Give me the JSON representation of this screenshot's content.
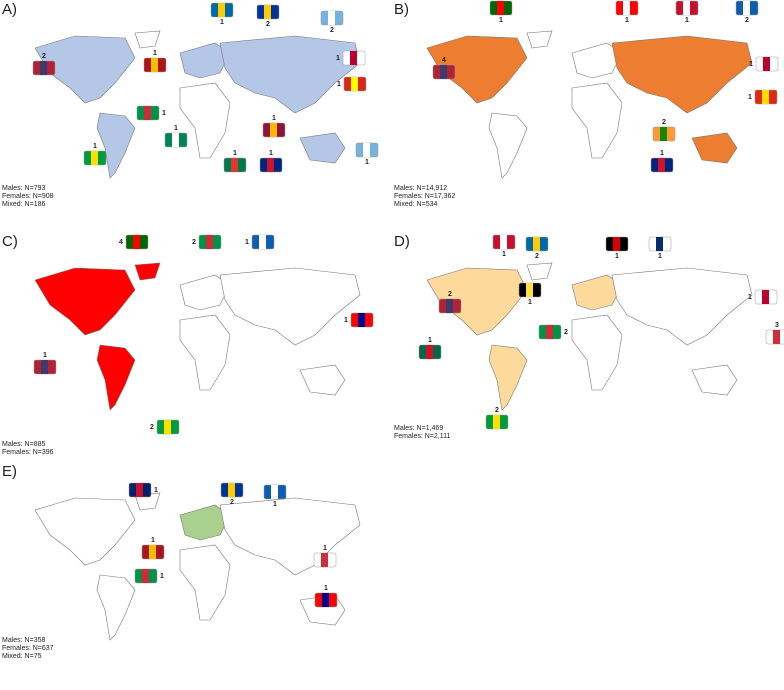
{
  "panels": [
    {
      "label": "A)",
      "flags": [
        {
          "count": 1
        },
        {
          "count": 2
        },
        {
          "count": 2
        },
        {
          "count": 2
        },
        {
          "count": 1
        },
        {
          "count": 1
        },
        {
          "count": 1
        },
        {
          "count": 1
        },
        {
          "count": 1
        },
        {
          "count": 1
        },
        {
          "count": 1
        },
        {
          "count": 1
        },
        {
          "count": 1
        },
        {
          "count": 1
        }
      ],
      "stats": [
        "Males: N=793",
        "Females: N=908",
        "Mixed: N=186"
      ]
    },
    {
      "label": "B)",
      "flags": [
        {
          "count": 1
        },
        {
          "count": 1
        },
        {
          "count": 1
        },
        {
          "count": 2
        },
        {
          "count": 4
        },
        {
          "count": 1
        },
        {
          "count": 1
        },
        {
          "count": 2
        },
        {
          "count": 1
        }
      ],
      "stats": [
        "Males:  N=14,912",
        "Females: N=17,362",
        "Mixed: N=534"
      ]
    },
    {
      "label": "C)",
      "flags": [
        {
          "count": 4
        },
        {
          "count": 2
        },
        {
          "count": 1
        },
        {
          "count": 1
        },
        {
          "count": 1
        },
        {
          "count": 2
        }
      ],
      "stats": [
        "Males: N=885",
        "Females: N=396"
      ]
    },
    {
      "label": "D)",
      "flags": [
        {
          "count": 1
        },
        {
          "count": 2
        },
        {
          "count": 1
        },
        {
          "count": 1
        },
        {
          "count": 2
        },
        {
          "count": 1
        },
        {
          "count": 1
        },
        {
          "count": 2
        },
        {
          "count": 1
        },
        {
          "count": 3
        },
        {
          "count": 2
        }
      ],
      "stats": [
        "Males: N=1,469",
        "Females: N=2,111"
      ]
    },
    {
      "label": "E)",
      "flags": [
        {
          "count": 1
        },
        {
          "count": 2
        },
        {
          "count": 1
        },
        {
          "count": 1
        },
        {
          "count": 1
        },
        {
          "count": 1
        },
        {
          "count": 1
        }
      ],
      "stats": [
        "Males: N=358",
        "Females: N=637",
        "Mixed: N=75"
      ]
    }
  ]
}
